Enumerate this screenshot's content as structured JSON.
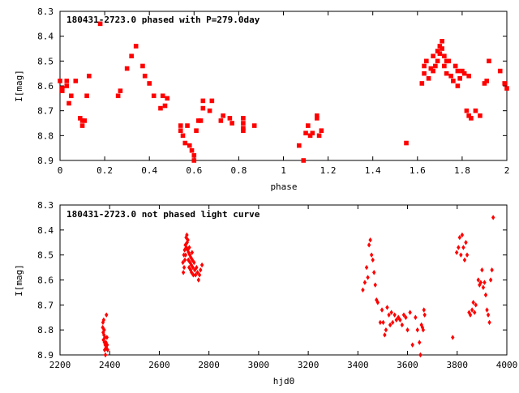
{
  "chart_data": [
    {
      "type": "scatter",
      "title": "180431-2723.0 phased with P=279.0day",
      "xlabel": "phase",
      "ylabel": "I[mag]",
      "xlim": [
        0,
        2
      ],
      "ylim": [
        8.9,
        8.3
      ],
      "y_axis_inverted": true,
      "grid": false,
      "legend": "none",
      "color": "#ff0000",
      "marker": "filled-square",
      "x_ticks": [
        "0",
        "0.2",
        "0.4",
        "0.6",
        "0.8",
        "1",
        "1.2",
        "1.4",
        "1.6",
        "1.8",
        "2"
      ],
      "y_ticks": [
        "8.3",
        "8.4",
        "8.5",
        "8.6",
        "8.7",
        "8.8",
        "8.9"
      ],
      "series": [
        {
          "x": [
            0.0,
            0.01,
            0.01,
            0.03,
            0.03,
            0.04,
            0.05,
            0.07,
            0.09,
            0.1,
            0.1,
            0.11,
            0.12,
            0.13,
            0.18,
            0.26,
            0.27,
            0.3,
            0.32,
            0.34,
            0.37,
            0.38,
            0.4,
            0.42,
            0.45,
            0.46,
            0.47,
            0.48,
            0.54,
            0.54,
            0.55,
            0.56,
            0.57,
            0.58,
            0.59,
            0.6,
            0.6,
            0.61,
            0.62,
            0.63,
            0.64,
            0.64,
            0.67,
            0.68,
            0.72,
            0.73,
            0.76,
            0.77,
            0.82,
            0.82,
            0.82,
            0.82,
            0.87,
            1.07,
            1.09,
            1.1,
            1.11,
            1.12,
            1.13,
            1.15,
            1.15,
            1.16,
            1.17,
            1.55,
            1.62,
            1.63,
            1.63,
            1.64,
            1.65,
            1.66,
            1.67,
            1.67,
            1.68,
            1.69,
            1.69,
            1.7,
            1.7,
            1.71,
            1.71,
            1.72,
            1.72,
            1.73,
            1.73,
            1.74,
            1.75,
            1.76,
            1.77,
            1.78,
            1.78,
            1.79,
            1.8,
            1.81,
            1.82,
            1.83,
            1.83,
            1.84,
            1.86,
            1.88,
            1.9,
            1.91,
            1.92,
            1.97,
            1.99,
            2.0
          ],
          "y": [
            8.58,
            8.61,
            8.62,
            8.58,
            8.6,
            8.67,
            8.64,
            8.58,
            8.73,
            8.74,
            8.76,
            8.74,
            8.64,
            8.56,
            8.35,
            8.64,
            8.62,
            8.53,
            8.48,
            8.44,
            8.52,
            8.56,
            8.59,
            8.64,
            8.69,
            8.64,
            8.68,
            8.65,
            8.76,
            8.78,
            8.8,
            8.83,
            8.76,
            8.84,
            8.86,
            8.88,
            8.9,
            8.78,
            8.74,
            8.74,
            8.66,
            8.69,
            8.7,
            8.66,
            8.74,
            8.72,
            8.73,
            8.75,
            8.73,
            8.75,
            8.77,
            8.78,
            8.76,
            8.84,
            8.9,
            8.79,
            8.76,
            8.8,
            8.79,
            8.73,
            8.72,
            8.8,
            8.78,
            8.83,
            8.59,
            8.55,
            8.52,
            8.5,
            8.57,
            8.53,
            8.54,
            8.48,
            8.52,
            8.46,
            8.5,
            8.44,
            8.47,
            8.42,
            8.45,
            8.48,
            8.52,
            8.5,
            8.55,
            8.5,
            8.56,
            8.58,
            8.52,
            8.54,
            8.6,
            8.57,
            8.54,
            8.55,
            8.7,
            8.72,
            8.56,
            8.73,
            8.7,
            8.72,
            8.59,
            8.58,
            8.5,
            8.54,
            8.59,
            8.61
          ]
        }
      ]
    },
    {
      "type": "scatter",
      "title": "180431-2723.0 not phased light curve",
      "xlabel": "hjd0",
      "ylabel": "I[mag]",
      "xlim": [
        2200,
        4000
      ],
      "ylim": [
        8.9,
        8.3
      ],
      "y_axis_inverted": true,
      "grid": false,
      "legend": "none",
      "color": "#ff0000",
      "marker": "diamond",
      "x_ticks": [
        "2200",
        "2400",
        "2600",
        "2800",
        "3000",
        "3200",
        "3400",
        "3600",
        "3800",
        "4000"
      ],
      "y_ticks": [
        "8.3",
        "8.4",
        "8.5",
        "8.6",
        "8.7",
        "8.8",
        "8.9"
      ],
      "series": [
        {
          "x": [
            2372,
            2373,
            2374,
            2375,
            2376,
            2377,
            2378,
            2379,
            2380,
            2381,
            2382,
            2383,
            2385,
            2386,
            2387,
            2389,
            2390,
            2392,
            2695,
            2697,
            2699,
            2700,
            2702,
            2703,
            2705,
            2706,
            2708,
            2709,
            2711,
            2712,
            2714,
            2715,
            2717,
            2718,
            2720,
            2721,
            2723,
            2724,
            2726,
            2727,
            2729,
            2730,
            2732,
            2733,
            2735,
            2737,
            2740,
            2743,
            2746,
            2750,
            2754,
            2758,
            2762,
            2766,
            2772,
            3420,
            3428,
            3435,
            3440,
            3445,
            3450,
            3455,
            3460,
            3465,
            3470,
            3475,
            3480,
            3490,
            3497,
            3502,
            3508,
            3513,
            3518,
            3525,
            3530,
            3535,
            3540,
            3548,
            3555,
            3563,
            3570,
            3578,
            3585,
            3593,
            3600,
            3610,
            3620,
            3632,
            3640,
            3648,
            3652,
            3656,
            3660,
            3663,
            3666,
            3669,
            3782,
            3798,
            3805,
            3810,
            3815,
            3820,
            3825,
            3830,
            3835,
            3840,
            3848,
            3853,
            3860,
            3865,
            3870,
            3875,
            3885,
            3890,
            3895,
            3900,
            3905,
            3910,
            3915,
            3920,
            3925,
            3930,
            3935,
            3940,
            3945
          ],
          "y": [
            8.79,
            8.77,
            8.81,
            8.84,
            8.76,
            8.82,
            8.8,
            8.85,
            8.88,
            8.83,
            8.86,
            8.9,
            8.85,
            8.87,
            8.74,
            8.83,
            8.86,
            8.88,
            8.53,
            8.57,
            8.5,
            8.55,
            8.48,
            8.52,
            8.46,
            8.5,
            8.43,
            8.47,
            8.42,
            8.45,
            8.48,
            8.44,
            8.52,
            8.49,
            8.55,
            8.47,
            8.5,
            8.53,
            8.56,
            8.51,
            8.54,
            8.57,
            8.49,
            8.52,
            8.55,
            8.58,
            8.53,
            8.56,
            8.58,
            8.55,
            8.57,
            8.6,
            8.58,
            8.56,
            8.54,
            8.64,
            8.61,
            8.55,
            8.59,
            8.46,
            8.44,
            8.5,
            8.52,
            8.57,
            8.62,
            8.68,
            8.69,
            8.77,
            8.72,
            8.77,
            8.82,
            8.8,
            8.71,
            8.74,
            8.78,
            8.73,
            8.77,
            8.74,
            8.76,
            8.75,
            8.76,
            8.78,
            8.74,
            8.75,
            8.8,
            8.73,
            8.86,
            8.75,
            8.8,
            8.85,
            8.9,
            8.78,
            8.79,
            8.8,
            8.72,
            8.74,
            8.83,
            8.49,
            8.47,
            8.43,
            8.5,
            8.42,
            8.47,
            8.52,
            8.45,
            8.5,
            8.73,
            8.74,
            8.72,
            8.69,
            8.73,
            8.7,
            8.6,
            8.62,
            8.61,
            8.56,
            8.63,
            8.61,
            8.66,
            8.72,
            8.74,
            8.77,
            8.6,
            8.56,
            8.35
          ]
        }
      ]
    }
  ]
}
